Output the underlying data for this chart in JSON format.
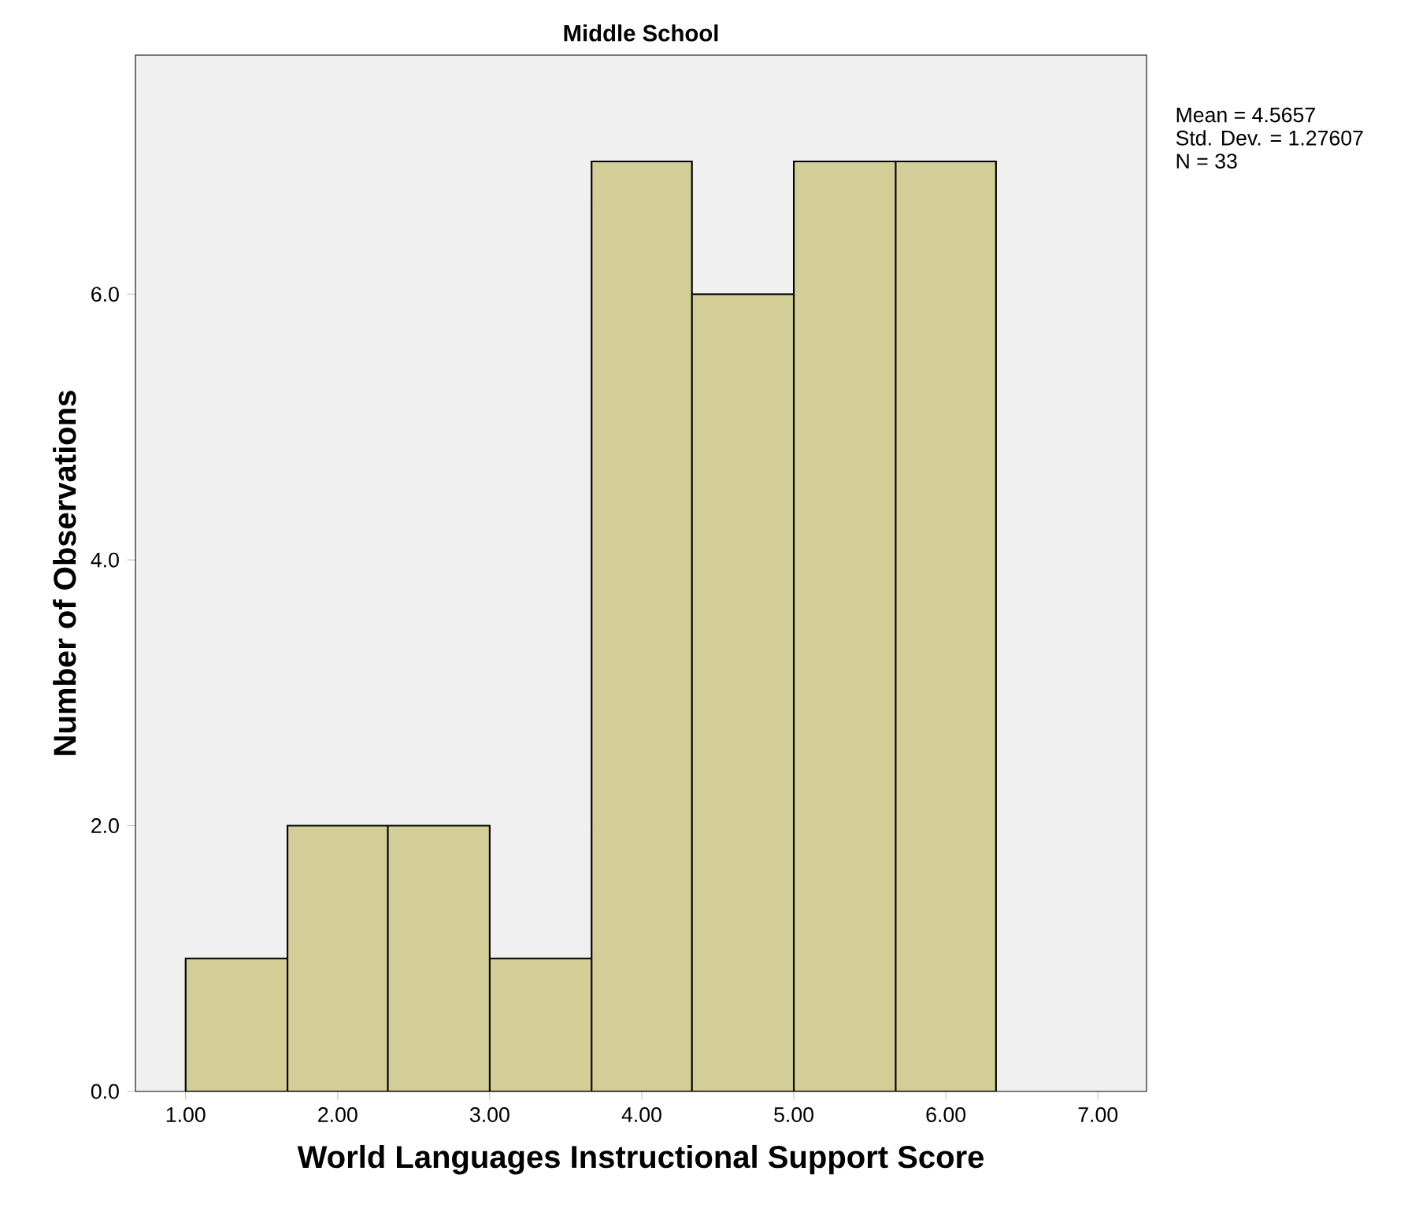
{
  "chart_data": {
    "type": "histogram",
    "title": "Middle School",
    "xlabel": "World Languages Instructional Support Score",
    "ylabel": "Number of Observations",
    "bins": [
      1.0,
      1.67,
      2.33,
      3.0,
      3.67,
      4.33,
      5.0,
      5.67,
      6.33
    ],
    "values": [
      1,
      2,
      2,
      1,
      7,
      6,
      7,
      7
    ],
    "color": "#d3ce97",
    "xlim": [
      0.67,
      7.32
    ],
    "ylim": [
      0,
      7.8
    ],
    "xticks": [
      {
        "value": 1,
        "label": "1.00"
      },
      {
        "value": 2,
        "label": "2.00"
      },
      {
        "value": 3,
        "label": "3.00"
      },
      {
        "value": 4,
        "label": "4.00"
      },
      {
        "value": 5,
        "label": "5.00"
      },
      {
        "value": 6,
        "label": "6.00"
      },
      {
        "value": 7,
        "label": "7.00"
      }
    ],
    "yticks": [
      {
        "value": 0,
        "label": "0.0"
      },
      {
        "value": 2,
        "label": "2.0"
      },
      {
        "value": 4,
        "label": "4.0"
      },
      {
        "value": 6,
        "label": "6.0"
      }
    ],
    "annotations": [
      "Mean = 4.5657",
      "Std. Dev. = 1.27607",
      "N = 33"
    ]
  }
}
